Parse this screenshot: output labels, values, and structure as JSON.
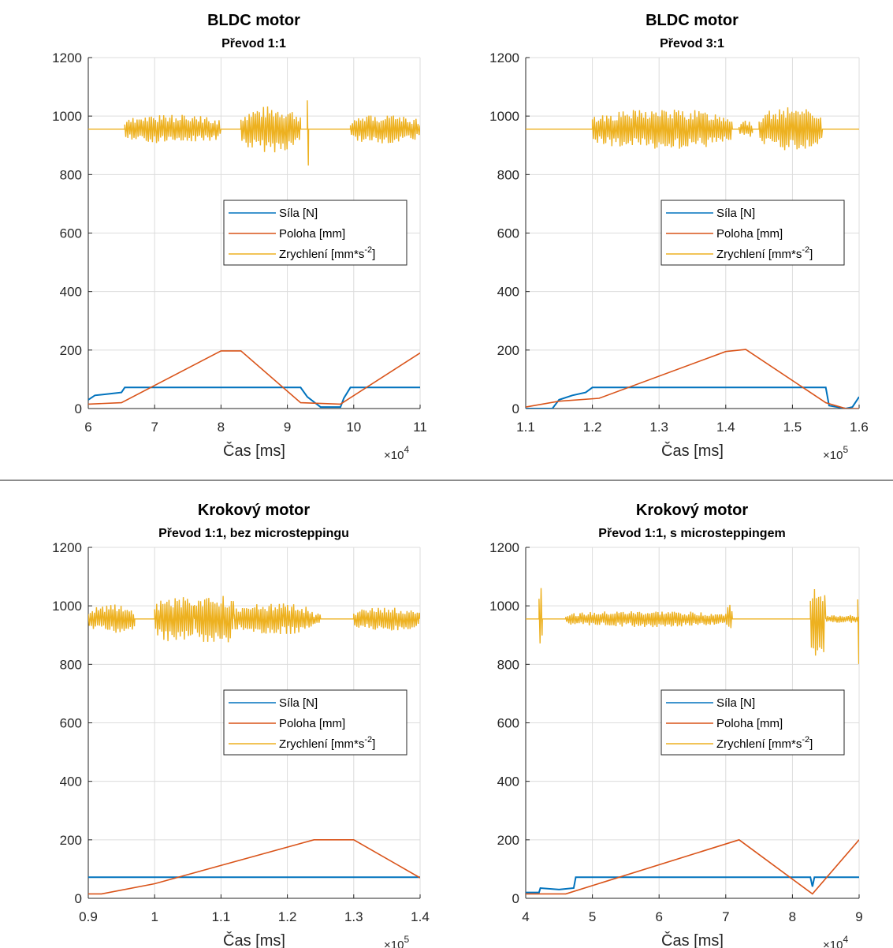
{
  "divider_color": "#8c8c8c",
  "colors": {
    "sila": "#0072BD",
    "poloha": "#D95319",
    "zrychleni": "#EDB120"
  },
  "chart_data": [
    {
      "type": "line",
      "title": "BLDC motor",
      "subtitle": "Převod 1:1",
      "xlabel": "Čas [ms]",
      "x_exponent_base": "×10",
      "x_exponent": "4",
      "xlim": [
        6,
        11
      ],
      "ylim": [
        0,
        1200
      ],
      "xticks": [
        6,
        7,
        8,
        9,
        10,
        11
      ],
      "xtick_labels": [
        "6",
        "7",
        "8",
        "9",
        "10",
        "11"
      ],
      "yticks": [
        0,
        200,
        400,
        600,
        800,
        1000,
        1200
      ],
      "grid": true,
      "legend_position": "center-right",
      "legend": [
        "Síla [N]",
        "Poloha [mm]",
        "Zrychlení [mm*s"
      ],
      "legend_superscript": "-2",
      "legend_suffix": "]",
      "series": [
        {
          "name": "Síla [N]",
          "color": "#0072BD",
          "x": [
            6.0,
            6.1,
            6.3,
            6.5,
            6.55,
            8.0,
            9.2,
            9.3,
            9.5,
            9.8,
            9.85,
            9.95,
            10.5,
            11.0
          ],
          "y": [
            30,
            45,
            50,
            55,
            72,
            72,
            72,
            40,
            5,
            5,
            35,
            72,
            72,
            72
          ]
        },
        {
          "name": "Poloha [mm]",
          "color": "#D95319",
          "x": [
            6.0,
            6.5,
            8.0,
            8.3,
            9.2,
            9.8,
            11.0
          ],
          "y": [
            15,
            20,
            197,
            197,
            20,
            15,
            190
          ]
        },
        {
          "name": "Zrychlení [mm*s-2]",
          "color": "#EDB120",
          "baseline": 955,
          "bursts": [
            {
              "x0": 6.55,
              "x1": 8.0,
              "amp": 50
            },
            {
              "x0": 8.3,
              "x1": 9.2,
              "amp": 80
            },
            {
              "x0": 9.3,
              "x1": 9.32,
              "amp": 200
            },
            {
              "x0": 9.95,
              "x1": 11.0,
              "amp": 50
            }
          ]
        }
      ]
    },
    {
      "type": "line",
      "title": "BLDC motor",
      "subtitle": "Převod 3:1",
      "xlabel": "Čas [ms]",
      "x_exponent_base": "×10",
      "x_exponent": "5",
      "xlim": [
        1.1,
        1.6
      ],
      "ylim": [
        0,
        1200
      ],
      "xticks": [
        1.1,
        1.2,
        1.3,
        1.4,
        1.5,
        1.6
      ],
      "xtick_labels": [
        "1.1",
        "1.2",
        "1.3",
        "1.4",
        "1.5",
        "1.6"
      ],
      "yticks": [
        0,
        200,
        400,
        600,
        800,
        1000,
        1200
      ],
      "grid": true,
      "legend_position": "center-right",
      "legend": [
        "Síla [N]",
        "Poloha [mm]",
        "Zrychlení [mm*s"
      ],
      "legend_superscript": "-2",
      "legend_suffix": "]",
      "series": [
        {
          "name": "Síla [N]",
          "color": "#0072BD",
          "x": [
            1.1,
            1.14,
            1.15,
            1.17,
            1.19,
            1.2,
            1.55,
            1.555,
            1.58,
            1.59,
            1.6
          ],
          "y": [
            0,
            0,
            30,
            45,
            55,
            72,
            72,
            10,
            0,
            5,
            40
          ]
        },
        {
          "name": "Poloha [mm]",
          "color": "#D95319",
          "x": [
            1.1,
            1.15,
            1.21,
            1.4,
            1.43,
            1.55,
            1.58,
            1.6
          ],
          "y": [
            5,
            25,
            35,
            195,
            202,
            20,
            0,
            0
          ]
        },
        {
          "name": "Zrychlení [mm*s-2]",
          "color": "#EDB120",
          "baseline": 955,
          "bursts": [
            {
              "x0": 1.2,
              "x1": 1.41,
              "amp": 70
            },
            {
              "x0": 1.42,
              "x1": 1.44,
              "amp": 30
            },
            {
              "x0": 1.45,
              "x1": 1.545,
              "amp": 75
            }
          ]
        }
      ]
    },
    {
      "type": "line",
      "title": "Krokový motor",
      "subtitle": "Převod 1:1, bez microsteppingu",
      "xlabel": "Čas [ms]",
      "x_exponent_base": "×10",
      "x_exponent": "5",
      "xlim": [
        0.9,
        1.4
      ],
      "ylim": [
        0,
        1200
      ],
      "xticks": [
        0.9,
        1.0,
        1.1,
        1.2,
        1.3,
        1.4
      ],
      "xtick_labels": [
        "0.9",
        "1",
        "1.1",
        "1.2",
        "1.3",
        "1.4"
      ],
      "yticks": [
        0,
        200,
        400,
        600,
        800,
        1000,
        1200
      ],
      "grid": true,
      "legend_position": "center-right",
      "legend": [
        "Síla [N]",
        "Poloha [mm]",
        "Zrychlení [mm*s"
      ],
      "legend_superscript": "-2",
      "legend_suffix": "]",
      "series": [
        {
          "name": "Síla [N]",
          "color": "#0072BD",
          "x": [
            0.9,
            1.0,
            1.1,
            1.2,
            1.3,
            1.4
          ],
          "y": [
            72,
            72,
            72,
            72,
            72,
            72
          ]
        },
        {
          "name": "Poloha [mm]",
          "color": "#D95319",
          "x": [
            0.9,
            0.92,
            1.0,
            1.24,
            1.3,
            1.4
          ],
          "y": [
            15,
            15,
            50,
            200,
            200,
            70
          ]
        },
        {
          "name": "Zrychlení [mm*s-2]",
          "color": "#EDB120",
          "baseline": 955,
          "bursts": [
            {
              "x0": 0.9,
              "x1": 0.97,
              "amp": 50
            },
            {
              "x0": 1.0,
              "x1": 1.06,
              "amp": 80
            },
            {
              "x0": 1.06,
              "x1": 1.12,
              "amp": 95
            },
            {
              "x0": 1.12,
              "x1": 1.24,
              "amp": 55
            },
            {
              "x0": 1.24,
              "x1": 1.25,
              "amp": 20
            },
            {
              "x0": 1.3,
              "x1": 1.4,
              "amp": 40
            }
          ]
        }
      ]
    },
    {
      "type": "line",
      "title": "Krokový motor",
      "subtitle": "Převod 1:1, s microsteppingem",
      "xlabel": "Čas [ms]",
      "x_exponent_base": "×10",
      "x_exponent": "4",
      "xlim": [
        4,
        9
      ],
      "ylim": [
        0,
        1200
      ],
      "xticks": [
        4,
        5,
        6,
        7,
        8,
        9
      ],
      "xtick_labels": [
        "4",
        "5",
        "6",
        "7",
        "8",
        "9"
      ],
      "yticks": [
        0,
        200,
        400,
        600,
        800,
        1000,
        1200
      ],
      "grid": true,
      "legend_position": "center-right",
      "legend": [
        "Síla [N]",
        "Poloha [mm]",
        "Zrychlení [mm*s"
      ],
      "legend_superscript": "-2",
      "legend_suffix": "]",
      "series": [
        {
          "name": "Síla [N]",
          "color": "#0072BD",
          "x": [
            4.0,
            4.2,
            4.22,
            4.5,
            4.72,
            4.75,
            8.27,
            8.3,
            8.33,
            9.0
          ],
          "y": [
            20,
            20,
            35,
            30,
            35,
            72,
            72,
            40,
            72,
            72
          ]
        },
        {
          "name": "Poloha [mm]",
          "color": "#D95319",
          "x": [
            4.0,
            4.6,
            7.2,
            8.3,
            9.0
          ],
          "y": [
            15,
            15,
            200,
            15,
            200
          ]
        },
        {
          "name": "Zrychlení [mm*s-2]",
          "color": "#EDB120",
          "baseline": 955,
          "bursts": [
            {
              "x0": 4.2,
              "x1": 4.25,
              "amp": 140
            },
            {
              "x0": 4.6,
              "x1": 7.0,
              "amp": 28
            },
            {
              "x0": 7.0,
              "x1": 7.1,
              "amp": 50
            },
            {
              "x0": 8.27,
              "x1": 8.5,
              "amp": 140
            },
            {
              "x0": 8.5,
              "x1": 9.0,
              "amp": 15
            },
            {
              "x0": 8.98,
              "x1": 9.0,
              "amp": 220
            }
          ]
        }
      ]
    }
  ]
}
